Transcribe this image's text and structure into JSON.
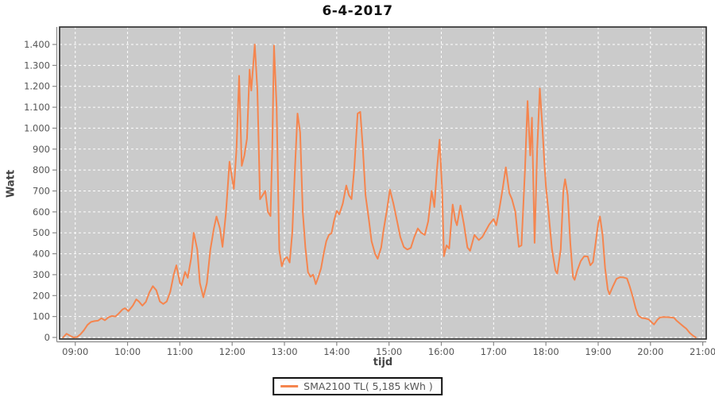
{
  "title": "6-4-2017",
  "chart_data": {
    "type": "line",
    "title": "6-4-2017",
    "xlabel": "tijd",
    "ylabel": "Watt",
    "x_ticks": [
      "09:00",
      "10:00",
      "11:00",
      "12:00",
      "13:00",
      "14:00",
      "15:00",
      "16:00",
      "17:00",
      "18:00",
      "19:00",
      "20:00",
      "21:00"
    ],
    "x_range": [
      "08:42",
      "21:04"
    ],
    "y_tick_values": [
      0,
      100,
      200,
      300,
      400,
      500,
      600,
      700,
      800,
      900,
      1000,
      1100,
      1200,
      1300,
      1400
    ],
    "y_tick_labels": [
      "0",
      "100",
      "200",
      "300",
      "400",
      "500",
      "600",
      "700",
      "800",
      "900",
      "1.000",
      "1.100",
      "1.200",
      "1.300",
      "1.400"
    ],
    "ylim": [
      0,
      1400
    ],
    "grid": true,
    "legend_position": "bottom",
    "plot_bg_color": "#cbcbcb",
    "grid_color": "#ffffff",
    "axis_color": "#888888",
    "tick_label_color": "#555555",
    "border_color": "#2a2a2a",
    "series": [
      {
        "name": "SMA2100 TL( 5,185 kWh )",
        "color": "#f5854e",
        "points": [
          [
            "08:46",
            0
          ],
          [
            "08:50",
            18
          ],
          [
            "08:54",
            8
          ],
          [
            "08:58",
            0
          ],
          [
            "09:02",
            2
          ],
          [
            "09:06",
            15
          ],
          [
            "09:10",
            35
          ],
          [
            "09:14",
            60
          ],
          [
            "09:18",
            74
          ],
          [
            "09:22",
            78
          ],
          [
            "09:26",
            80
          ],
          [
            "09:30",
            92
          ],
          [
            "09:34",
            82
          ],
          [
            "09:38",
            96
          ],
          [
            "09:42",
            103
          ],
          [
            "09:46",
            100
          ],
          [
            "09:50",
            115
          ],
          [
            "09:54",
            133
          ],
          [
            "09:57",
            140
          ],
          [
            "10:01",
            126
          ],
          [
            "10:06",
            152
          ],
          [
            "10:10",
            182
          ],
          [
            "10:13",
            172
          ],
          [
            "10:17",
            152
          ],
          [
            "10:21",
            170
          ],
          [
            "10:25",
            215
          ],
          [
            "10:29",
            245
          ],
          [
            "10:33",
            225
          ],
          [
            "10:37",
            172
          ],
          [
            "10:41",
            160
          ],
          [
            "10:45",
            172
          ],
          [
            "10:49",
            218
          ],
          [
            "10:53",
            300
          ],
          [
            "10:56",
            345
          ],
          [
            "11:00",
            262
          ],
          [
            "11:02",
            250
          ],
          [
            "11:06",
            313
          ],
          [
            "11:09",
            285
          ],
          [
            "11:13",
            380
          ],
          [
            "11:16",
            500
          ],
          [
            "11:20",
            420
          ],
          [
            "11:23",
            260
          ],
          [
            "11:27",
            192
          ],
          [
            "11:31",
            260
          ],
          [
            "11:35",
            420
          ],
          [
            "11:39",
            520
          ],
          [
            "11:42",
            578
          ],
          [
            "11:46",
            520
          ],
          [
            "11:49",
            433
          ],
          [
            "11:53",
            600
          ],
          [
            "11:57",
            840
          ],
          [
            "12:00",
            760
          ],
          [
            "12:02",
            710
          ],
          [
            "12:05",
            900
          ],
          [
            "12:08",
            1250
          ],
          [
            "12:11",
            820
          ],
          [
            "12:14",
            870
          ],
          [
            "12:17",
            950
          ],
          [
            "12:20",
            1280
          ],
          [
            "12:22",
            1180
          ],
          [
            "12:26",
            1400
          ],
          [
            "12:29",
            1180
          ],
          [
            "12:32",
            660
          ],
          [
            "12:35",
            680
          ],
          [
            "12:38",
            700
          ],
          [
            "12:41",
            600
          ],
          [
            "12:44",
            580
          ],
          [
            "12:46",
            900
          ],
          [
            "12:48",
            1395
          ],
          [
            "12:51",
            1100
          ],
          [
            "12:54",
            420
          ],
          [
            "12:57",
            340
          ],
          [
            "13:00",
            375
          ],
          [
            "13:03",
            384
          ],
          [
            "13:06",
            358
          ],
          [
            "13:09",
            500
          ],
          [
            "13:12",
            800
          ],
          [
            "13:15",
            1070
          ],
          [
            "13:18",
            980
          ],
          [
            "13:21",
            600
          ],
          [
            "13:24",
            430
          ],
          [
            "13:27",
            312
          ],
          [
            "13:30",
            290
          ],
          [
            "13:33",
            300
          ],
          [
            "13:36",
            255
          ],
          [
            "13:39",
            290
          ],
          [
            "13:42",
            330
          ],
          [
            "13:45",
            400
          ],
          [
            "13:48",
            460
          ],
          [
            "13:51",
            490
          ],
          [
            "13:54",
            498
          ],
          [
            "13:57",
            560
          ],
          [
            "14:00",
            605
          ],
          [
            "14:03",
            588
          ],
          [
            "14:07",
            640
          ],
          [
            "14:11",
            726
          ],
          [
            "14:14",
            680
          ],
          [
            "14:17",
            661
          ],
          [
            "14:20",
            800
          ],
          [
            "14:24",
            1070
          ],
          [
            "14:27",
            1078
          ],
          [
            "14:30",
            900
          ],
          [
            "14:33",
            680
          ],
          [
            "14:37",
            560
          ],
          [
            "14:40",
            460
          ],
          [
            "14:44",
            400
          ],
          [
            "14:47",
            376
          ],
          [
            "14:51",
            430
          ],
          [
            "14:54",
            520
          ],
          [
            "14:58",
            620
          ],
          [
            "15:01",
            707
          ],
          [
            "15:05",
            640
          ],
          [
            "15:09",
            560
          ],
          [
            "15:13",
            480
          ],
          [
            "15:17",
            432
          ],
          [
            "15:21",
            420
          ],
          [
            "15:25",
            428
          ],
          [
            "15:29",
            480
          ],
          [
            "15:33",
            521
          ],
          [
            "15:37",
            500
          ],
          [
            "15:41",
            490
          ],
          [
            "15:45",
            555
          ],
          [
            "15:49",
            700
          ],
          [
            "15:52",
            623
          ],
          [
            "15:55",
            800
          ],
          [
            "15:58",
            945
          ],
          [
            "16:01",
            700
          ],
          [
            "16:03",
            388
          ],
          [
            "16:06",
            440
          ],
          [
            "16:09",
            425
          ],
          [
            "16:13",
            635
          ],
          [
            "16:16",
            560
          ],
          [
            "16:18",
            536
          ],
          [
            "16:22",
            630
          ],
          [
            "16:26",
            540
          ],
          [
            "16:30",
            430
          ],
          [
            "16:33",
            414
          ],
          [
            "16:38",
            490
          ],
          [
            "16:43",
            465
          ],
          [
            "16:47",
            480
          ],
          [
            "16:51",
            510
          ],
          [
            "16:55",
            540
          ],
          [
            "17:00",
            566
          ],
          [
            "17:03",
            536
          ],
          [
            "17:06",
            600
          ],
          [
            "17:10",
            700
          ],
          [
            "17:14",
            813
          ],
          [
            "17:18",
            690
          ],
          [
            "17:21",
            661
          ],
          [
            "17:25",
            600
          ],
          [
            "17:29",
            433
          ],
          [
            "17:32",
            440
          ],
          [
            "17:36",
            800
          ],
          [
            "17:39",
            1130
          ],
          [
            "17:42",
            870
          ],
          [
            "17:44",
            1050
          ],
          [
            "17:47",
            452
          ],
          [
            "17:50",
            900
          ],
          [
            "17:53",
            1190
          ],
          [
            "17:56",
            1000
          ],
          [
            "17:58",
            851
          ],
          [
            "18:00",
            725
          ],
          [
            "18:03",
            600
          ],
          [
            "18:07",
            420
          ],
          [
            "18:11",
            320
          ],
          [
            "18:13",
            305
          ],
          [
            "18:17",
            420
          ],
          [
            "18:20",
            700
          ],
          [
            "18:22",
            756
          ],
          [
            "18:25",
            680
          ],
          [
            "18:28",
            450
          ],
          [
            "18:31",
            290
          ],
          [
            "18:33",
            275
          ],
          [
            "18:36",
            320
          ],
          [
            "18:40",
            365
          ],
          [
            "18:44",
            388
          ],
          [
            "18:48",
            387
          ],
          [
            "18:51",
            345
          ],
          [
            "18:54",
            360
          ],
          [
            "18:57",
            450
          ],
          [
            "19:00",
            545
          ],
          [
            "19:02",
            578
          ],
          [
            "19:05",
            490
          ],
          [
            "19:08",
            330
          ],
          [
            "19:11",
            230
          ],
          [
            "19:13",
            206
          ],
          [
            "19:17",
            245
          ],
          [
            "19:21",
            280
          ],
          [
            "19:25",
            288
          ],
          [
            "19:29",
            287
          ],
          [
            "19:33",
            282
          ],
          [
            "19:36",
            246
          ],
          [
            "19:40",
            190
          ],
          [
            "19:43",
            140
          ],
          [
            "19:46",
            105
          ],
          [
            "19:50",
            93
          ],
          [
            "19:54",
            91
          ],
          [
            "19:58",
            86
          ],
          [
            "20:02",
            70
          ],
          [
            "20:04",
            62
          ],
          [
            "20:08",
            85
          ],
          [
            "20:11",
            96
          ],
          [
            "20:15",
            98
          ],
          [
            "20:19",
            97
          ],
          [
            "20:23",
            96
          ],
          [
            "20:27",
            94
          ],
          [
            "20:30",
            80
          ],
          [
            "20:34",
            66
          ],
          [
            "20:38",
            52
          ],
          [
            "20:41",
            42
          ],
          [
            "20:45",
            22
          ],
          [
            "20:49",
            8
          ],
          [
            "20:52",
            0
          ]
        ]
      }
    ]
  }
}
